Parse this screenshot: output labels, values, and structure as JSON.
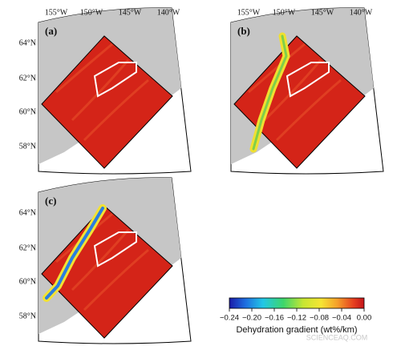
{
  "panels": [
    {
      "label": "(a)",
      "lon_labels": [
        "155°W",
        "150°W",
        "145°W",
        "140°W"
      ],
      "lat_labels": [
        "64°N",
        "62°N",
        "60°N",
        "58°N"
      ]
    },
    {
      "label": "(b)",
      "lon_labels": [
        "155°W",
        "150°W",
        "145°W",
        "140°W"
      ]
    },
    {
      "label": "(c)",
      "lat_labels": [
        "64°N",
        "62°N",
        "60°N",
        "58°N"
      ]
    }
  ],
  "colorbar": {
    "ticks": [
      {
        "value": -0.24,
        "label": "−0.24"
      },
      {
        "value": -0.2,
        "label": "−0.20"
      },
      {
        "value": -0.16,
        "label": "−0.16"
      },
      {
        "value": -0.12,
        "label": "−0.12"
      },
      {
        "value": -0.08,
        "label": "−0.08"
      },
      {
        "value": -0.04,
        "label": "−0.04"
      },
      {
        "value": 0,
        "label": "0.00"
      }
    ],
    "label": "Dehydration gradient (wt%/km)"
  },
  "watermark": "SCIENCEAQ.COM"
}
